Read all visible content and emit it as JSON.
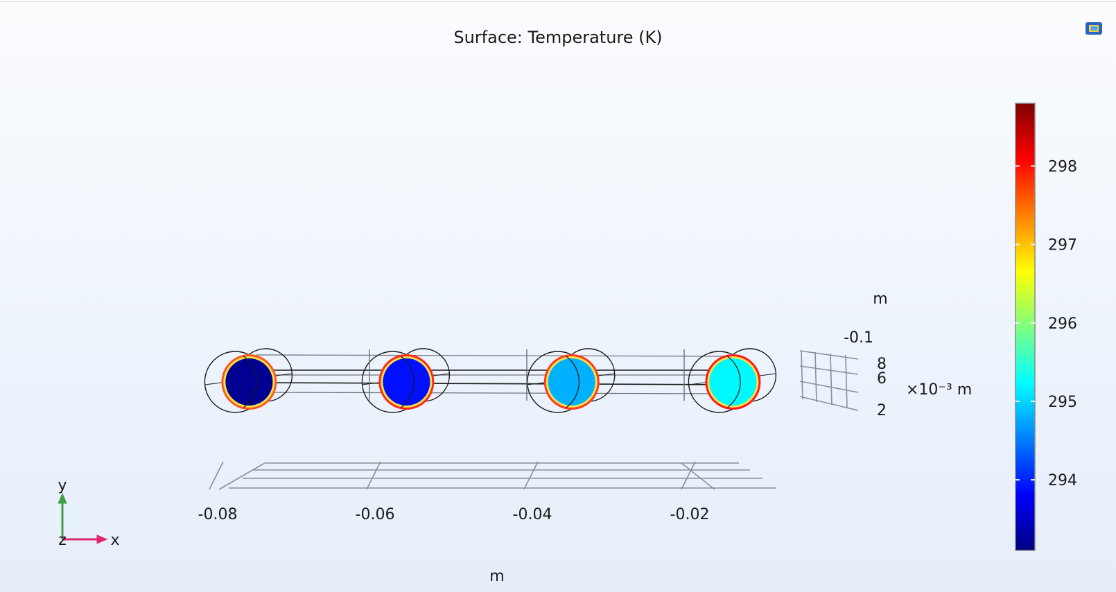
{
  "chart_data": {
    "type": "heatmap",
    "title": "Surface: Temperature (K)",
    "x_axis": {
      "unit_label": "m",
      "ticks": [
        -0.08,
        -0.06,
        -0.04,
        -0.02
      ],
      "tick_labels": [
        "-0.08",
        "-0.06",
        "-0.04",
        "-0.02"
      ]
    },
    "z_axis": {
      "unit_label": "m",
      "tick_labels": [
        "-0.1"
      ]
    },
    "y_axis": {
      "unit_label": "×10⁻³ m",
      "ticks": [
        2,
        6,
        8
      ],
      "tick_labels": [
        "2",
        "6",
        "8"
      ]
    },
    "colorbar": {
      "ticks": [
        294,
        295,
        296,
        297,
        298
      ],
      "tick_labels": [
        "294",
        "295",
        "296",
        "297",
        "298"
      ],
      "range": [
        293.1,
        298.8
      ],
      "colormap": [
        "#00007f",
        "#0000ff",
        "#0080ff",
        "#00ffff",
        "#80ff80",
        "#ffff00",
        "#ff8000",
        "#ff0000",
        "#7f0000"
      ]
    },
    "surfaces": [
      {
        "x": -0.076,
        "temperature": 293.2,
        "rim": "#ff5a1e"
      },
      {
        "x": -0.056,
        "temperature": 293.9,
        "rim": "#ff2a1a"
      },
      {
        "x": -0.035,
        "temperature": 294.8,
        "rim": "#ff3a1a"
      },
      {
        "x": -0.0145,
        "temperature": 295.2,
        "rim": "#ff1a1a"
      }
    ],
    "grid": true
  },
  "orientation": {
    "y_label": "y",
    "z_label": "z",
    "x_label": "x",
    "y_color": "#3fa047",
    "x_color": "#e0266a"
  },
  "toolbar_icon": "graphics-window-icon"
}
